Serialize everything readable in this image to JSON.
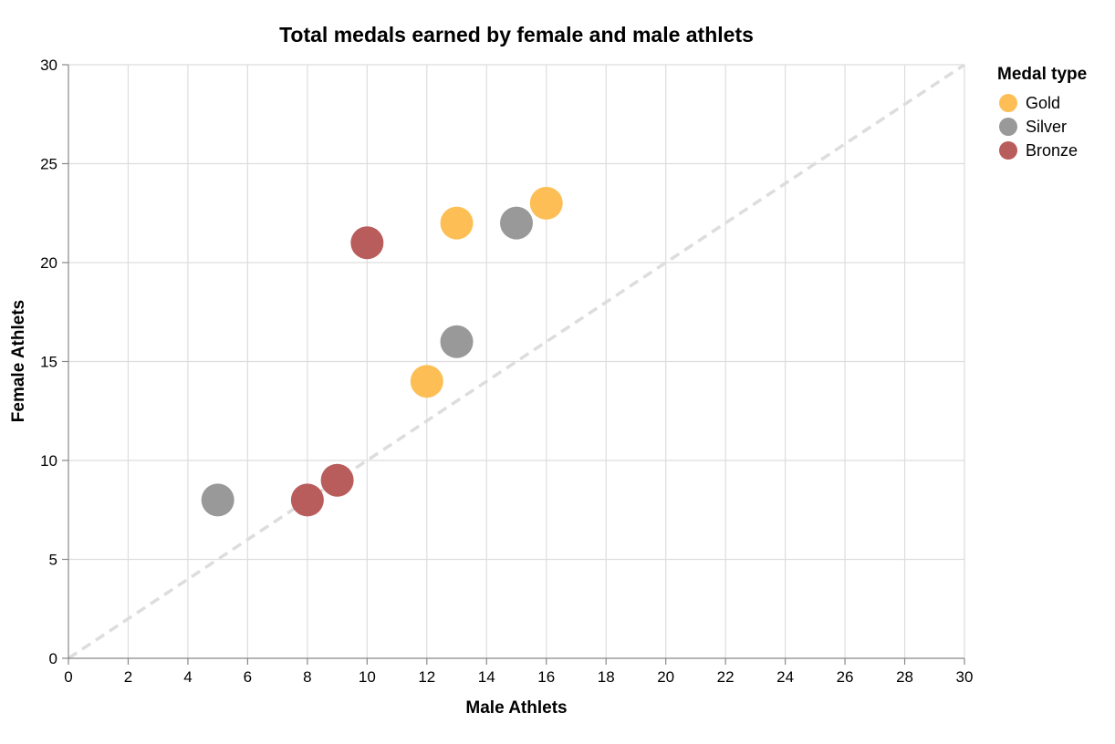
{
  "chart_data": {
    "type": "scatter",
    "title": "Total medals earned by female and male athlets",
    "xlabel": "Male Athlets",
    "ylabel": "Female Athlets",
    "xlim": [
      0,
      30
    ],
    "ylim": [
      0,
      30
    ],
    "x_ticks": [
      0,
      2,
      4,
      6,
      8,
      10,
      12,
      14,
      16,
      18,
      20,
      22,
      24,
      26,
      28,
      30
    ],
    "y_ticks": [
      0,
      5,
      10,
      15,
      20,
      25,
      30
    ],
    "grid": true,
    "legend": {
      "title": "Medal type",
      "placement": "top-right"
    },
    "reference_line": {
      "style": "dashed",
      "from": [
        0,
        0
      ],
      "to": [
        30,
        30
      ],
      "color": "#dddddd"
    },
    "series": [
      {
        "name": "Gold",
        "color": "#fdbf55",
        "points": [
          {
            "x": 12,
            "y": 14
          },
          {
            "x": 13,
            "y": 22
          },
          {
            "x": 16,
            "y": 23
          }
        ]
      },
      {
        "name": "Silver",
        "color": "#999999",
        "points": [
          {
            "x": 5,
            "y": 8
          },
          {
            "x": 13,
            "y": 16
          },
          {
            "x": 15,
            "y": 22
          }
        ]
      },
      {
        "name": "Bronze",
        "color": "#b95c5c",
        "points": [
          {
            "x": 8,
            "y": 8
          },
          {
            "x": 9,
            "y": 9
          },
          {
            "x": 10,
            "y": 21
          }
        ]
      }
    ]
  }
}
